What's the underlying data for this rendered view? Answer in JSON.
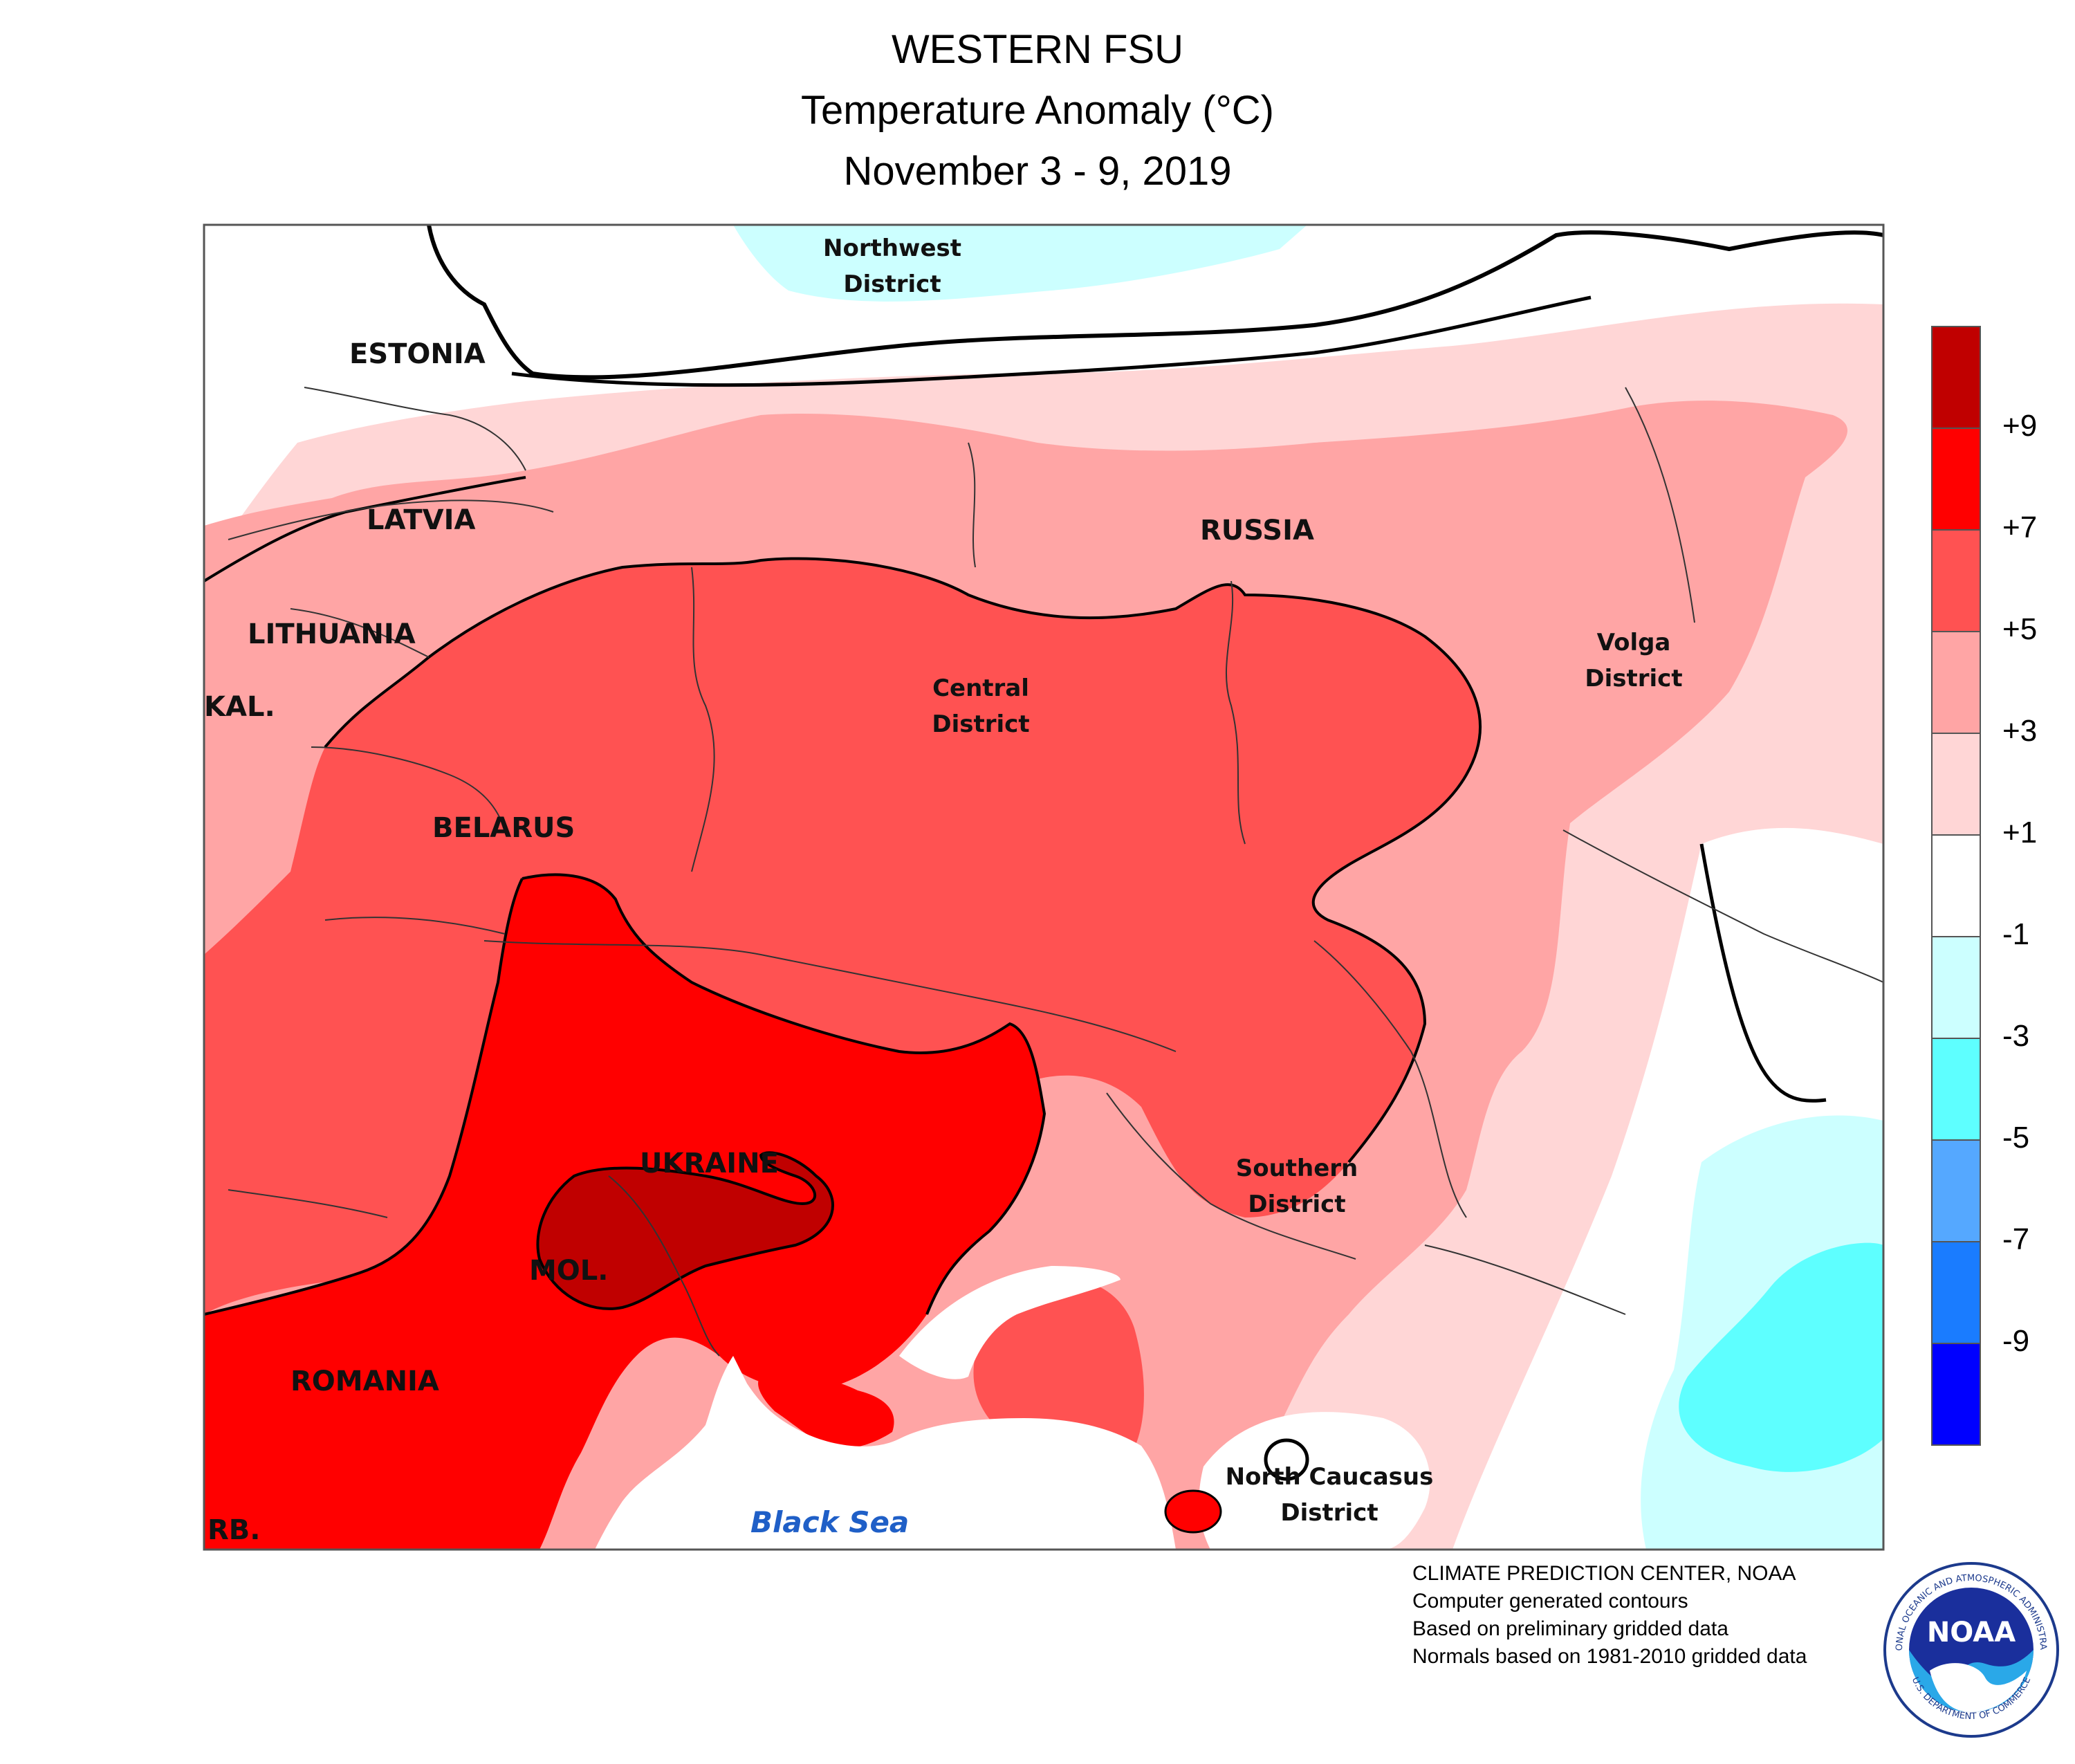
{
  "title": {
    "line1": "WESTERN FSU",
    "line2": "Temperature Anomaly (°C)",
    "line3": "November 3 - 9, 2019"
  },
  "labels": {
    "estonia": "ESTONIA",
    "latvia": "LATVIA",
    "lithuania": "LITHUANIA",
    "kal": "KAL.",
    "belarus": "BELARUS",
    "russia": "RUSSIA",
    "ukraine": "UKRAINE",
    "moldova": "MOL.",
    "romania": "ROMANIA",
    "serbia": "RB.",
    "black_sea": "Black Sea",
    "northwest_1": "Northwest",
    "northwest_2": "District",
    "central_1": "Central",
    "central_2": "District",
    "volga_1": "Volga",
    "volga_2": "District",
    "southern_1": "Southern",
    "southern_2": "District",
    "caucasus_1": "North Caucasus",
    "caucasus_2": "District"
  },
  "legend": {
    "bins": [
      {
        "color": "#c00000"
      },
      {
        "color": "#ff0000"
      },
      {
        "color": "#ff5252"
      },
      {
        "color": "#ffa5a5"
      },
      {
        "color": "#ffd6d6"
      },
      {
        "color": "#ffffff"
      },
      {
        "color": "#ccffff"
      },
      {
        "color": "#5effff"
      },
      {
        "color": "#55a8ff"
      },
      {
        "color": "#1a7cff"
      },
      {
        "color": "#0000ff"
      }
    ],
    "ticks": [
      "+9",
      "+7",
      "+5",
      "+3",
      "+1",
      "-1",
      "-3",
      "-5",
      "-7",
      "-9"
    ]
  },
  "credits": {
    "line1": "CLIMATE PREDICTION CENTER, NOAA",
    "line2": "Computer generated contours",
    "line3": "Based on preliminary gridded data",
    "line4": "Normals based on 1981-2010 gridded data"
  },
  "logo": {
    "text": "NOAA",
    "ring_top": "NATIONAL OCEANIC AND ATMOSPHERIC ADMINISTRATION",
    "ring_bottom": "U.S. DEPARTMENT OF COMMERCE"
  },
  "colors": {
    "plus1_3": "#ffd6d6",
    "plus3_5": "#ffa5a5",
    "plus5_7": "#ff5252",
    "plus7_9": "#ff0000",
    "plus9": "#c00000",
    "minus1_3": "#ccffff",
    "minus3_5": "#5effff"
  }
}
